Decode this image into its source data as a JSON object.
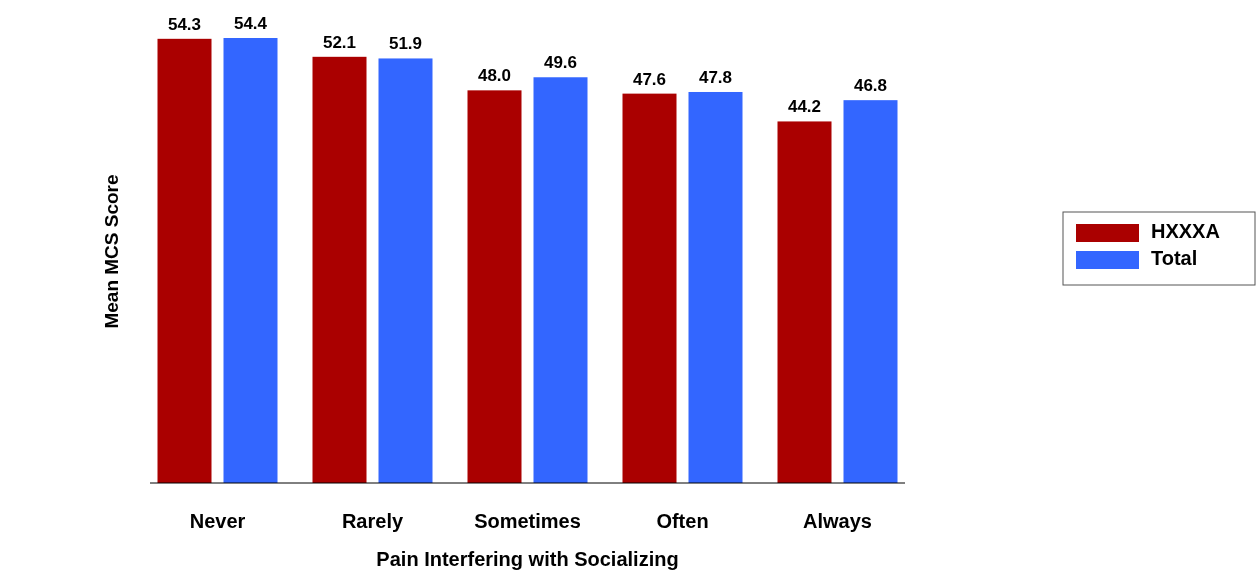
{
  "chart_data": {
    "type": "bar",
    "xlabel": "Pain Interfering with Socializing",
    "ylabel": "Mean MCS Score",
    "categories": [
      "Never",
      "Rarely",
      "Sometimes",
      "Often",
      "Always"
    ],
    "series": [
      {
        "name": "HXXXA",
        "color": "#aa0000",
        "values": [
          54.3,
          52.1,
          48.0,
          47.6,
          44.2
        ],
        "value_labels": [
          "54.3",
          "52.1",
          "48.0",
          "47.6",
          "44.2"
        ]
      },
      {
        "name": "Total",
        "color": "#3366ff",
        "values": [
          54.4,
          51.9,
          49.6,
          47.8,
          46.8
        ],
        "value_labels": [
          "54.4",
          "51.9",
          "49.6",
          "47.8",
          "46.8"
        ]
      }
    ],
    "tick_labels": "x",
    "legend": "right"
  }
}
